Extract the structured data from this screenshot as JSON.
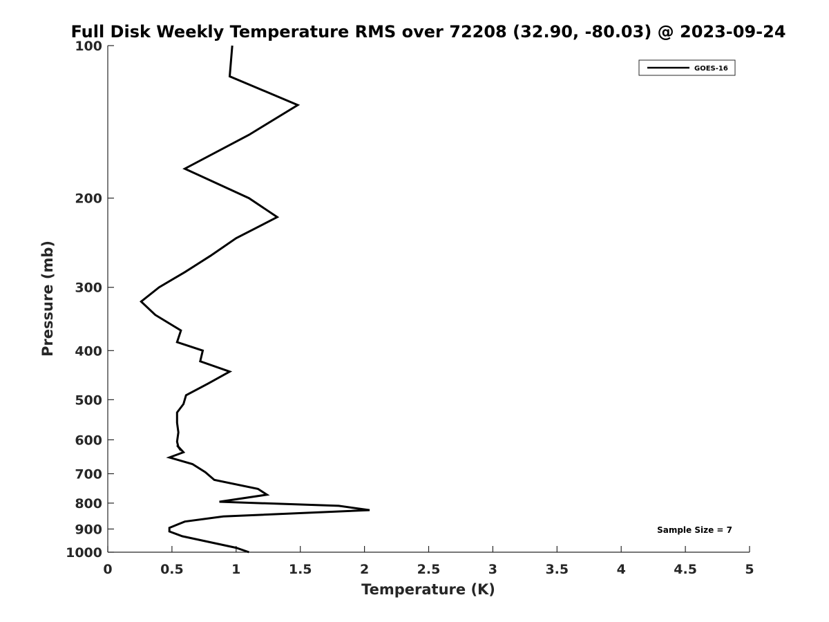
{
  "chart_data": {
    "type": "line",
    "title": "Full Disk Weekly Temperature RMS over 72208 (32.90, -80.03) @ 2023-09-24",
    "xlabel": "Temperature (K)",
    "ylabel": "Pressure (mb)",
    "xlim": [
      0,
      5
    ],
    "ylim": [
      100,
      1000
    ],
    "y_scale": "log",
    "y_reversed": true,
    "xticks": [
      0,
      0.5,
      1,
      1.5,
      2,
      2.5,
      3,
      3.5,
      4,
      4.5,
      5
    ],
    "xtick_labels": [
      "0",
      "0.5",
      "1",
      "1.5",
      "2",
      "2.5",
      "3",
      "3.5",
      "4",
      "4.5",
      "5"
    ],
    "yticks": [
      100,
      200,
      300,
      400,
      500,
      600,
      700,
      800,
      900,
      1000
    ],
    "ytick_labels": [
      "100",
      "200",
      "300",
      "400",
      "500",
      "600",
      "700",
      "800",
      "900",
      "1000"
    ],
    "grid": false,
    "legend_position": "top-right",
    "annotation": "Sample Size = 7",
    "series": [
      {
        "name": "GOES-16",
        "color": "#000000",
        "x": [
          0.97,
          0.95,
          1.48,
          1.1,
          0.6,
          1.1,
          1.32,
          1.0,
          0.8,
          0.6,
          0.4,
          0.26,
          0.37,
          0.57,
          0.54,
          0.74,
          0.72,
          0.95,
          0.78,
          0.61,
          0.59,
          0.54,
          0.54,
          0.55,
          0.54,
          0.55,
          0.54,
          0.59,
          0.48,
          0.66,
          0.76,
          0.83,
          1.17,
          1.24,
          0.87,
          1.8,
          2.04,
          0.9,
          0.6,
          0.48,
          0.48,
          0.58,
          1.0,
          1.1
        ],
        "y": [
          100,
          115,
          131,
          150,
          175,
          200,
          218,
          240,
          260,
          280,
          300,
          320,
          340,
          365,
          385,
          400,
          420,
          440,
          465,
          490,
          510,
          530,
          555,
          580,
          605,
          620,
          615,
          635,
          650,
          670,
          695,
          720,
          750,
          770,
          795,
          810,
          826,
          850,
          870,
          895,
          910,
          930,
          980,
          1000
        ]
      }
    ]
  }
}
